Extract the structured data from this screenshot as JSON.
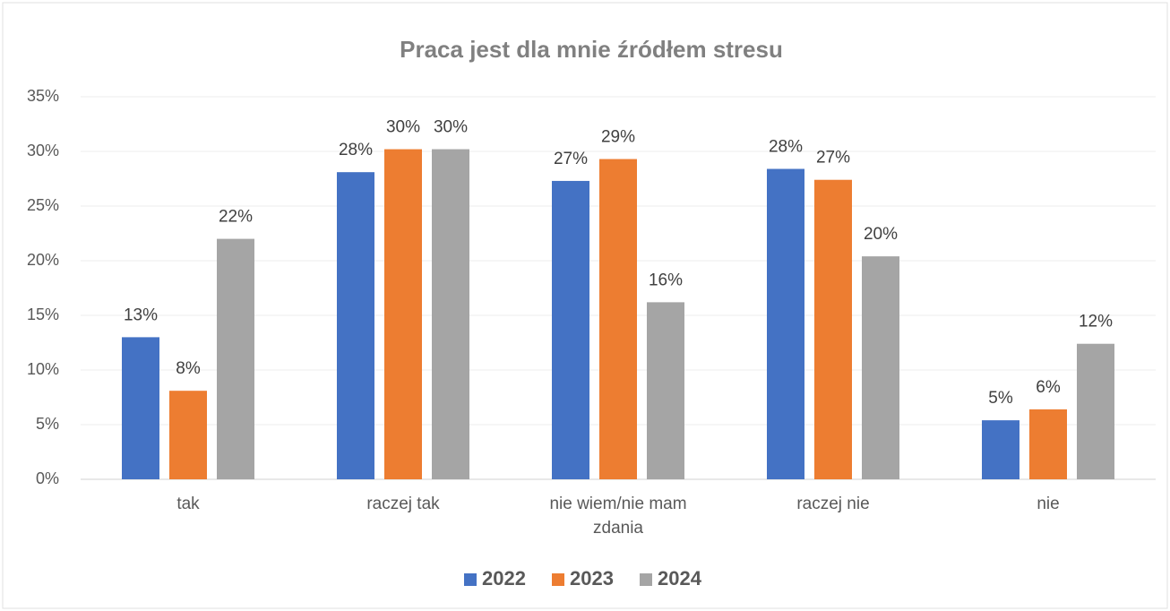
{
  "chart_data": {
    "type": "bar",
    "title": "Praca jest dla mnie źródłem stresu",
    "categories": [
      "tak",
      "raczej tak",
      "nie wiem/nie mam zdania",
      "raczej nie",
      "nie"
    ],
    "series": [
      {
        "name": "2022",
        "color": "#4472c4",
        "values": [
          13.0,
          28.1,
          27.3,
          28.4,
          5.4
        ],
        "value_labels": [
          "13%",
          "28%",
          "27%",
          "28%",
          "5%"
        ]
      },
      {
        "name": "2023",
        "color": "#ed7d31",
        "values": [
          8.1,
          30.2,
          29.3,
          27.4,
          6.4
        ],
        "value_labels": [
          "8%",
          "30%",
          "29%",
          "27%",
          "6%"
        ]
      },
      {
        "name": "2024",
        "color": "#a5a5a5",
        "values": [
          22.0,
          30.2,
          16.2,
          20.4,
          12.4
        ],
        "value_labels": [
          "22%",
          "30%",
          "16%",
          "20%",
          "12%"
        ]
      }
    ],
    "ylim": [
      0,
      35
    ],
    "yticks": [
      {
        "value": 0,
        "label": "0%"
      },
      {
        "value": 5,
        "label": "5%"
      },
      {
        "value": 10,
        "label": "10%"
      },
      {
        "value": 15,
        "label": "15%"
      },
      {
        "value": 20,
        "label": "20%"
      },
      {
        "value": 25,
        "label": "25%"
      },
      {
        "value": 30,
        "label": "30%"
      },
      {
        "value": 35,
        "label": "35%"
      }
    ],
    "grid": true,
    "legend": "bottom"
  }
}
